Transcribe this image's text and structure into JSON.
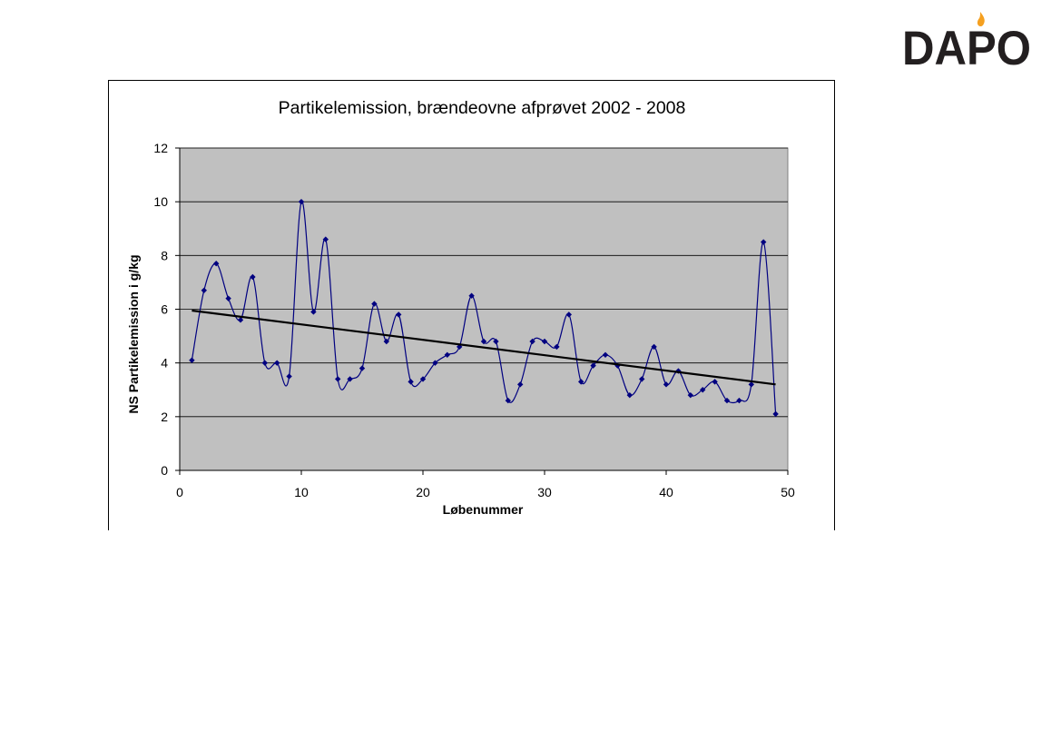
{
  "logo": {
    "text": "DAPO",
    "flame_color": "#f5a020",
    "text_color": "#231f20"
  },
  "chart_data": {
    "type": "line",
    "title": "Partikelemission, brændeovne afprøvet 2002 - 2008",
    "xlabel": "Løbenummer",
    "ylabel": "NS Partikelemission i g/kg",
    "xlim": [
      0,
      50
    ],
    "ylim": [
      0,
      12
    ],
    "xticks": [
      0,
      10,
      20,
      30,
      40,
      50
    ],
    "yticks": [
      0,
      2,
      4,
      6,
      8,
      10,
      12
    ],
    "grid": "horizontal",
    "legend": "none",
    "plot_background": "#c0c0c0",
    "series": [
      {
        "color": "#000080",
        "marker": "diamond",
        "smooth": true,
        "x": [
          1,
          2,
          3,
          4,
          5,
          6,
          7,
          8,
          9,
          10,
          11,
          12,
          13,
          14,
          15,
          16,
          17,
          18,
          19,
          20,
          21,
          22,
          23,
          24,
          25,
          26,
          27,
          28,
          29,
          30,
          31,
          32,
          33,
          34,
          35,
          36,
          37,
          38,
          39,
          40,
          41,
          42,
          43,
          44,
          45,
          46,
          47,
          48,
          49
        ],
        "y": [
          4.1,
          6.7,
          7.7,
          6.4,
          5.6,
          7.2,
          4.0,
          4.0,
          3.5,
          10.0,
          5.9,
          8.6,
          3.4,
          3.4,
          3.8,
          6.2,
          4.8,
          5.8,
          3.3,
          3.4,
          4.0,
          4.3,
          4.6,
          6.5,
          4.8,
          4.8,
          2.6,
          3.2,
          4.8,
          4.8,
          4.6,
          5.8,
          3.3,
          3.9,
          4.3,
          3.9,
          2.8,
          3.4,
          4.6,
          3.2,
          3.7,
          2.8,
          3.0,
          3.3,
          2.6,
          2.6,
          3.2,
          8.5,
          2.1
        ]
      }
    ],
    "trendline": {
      "type": "linear",
      "color": "#000000",
      "x": [
        1,
        49
      ],
      "y": [
        5.95,
        3.2
      ]
    }
  }
}
